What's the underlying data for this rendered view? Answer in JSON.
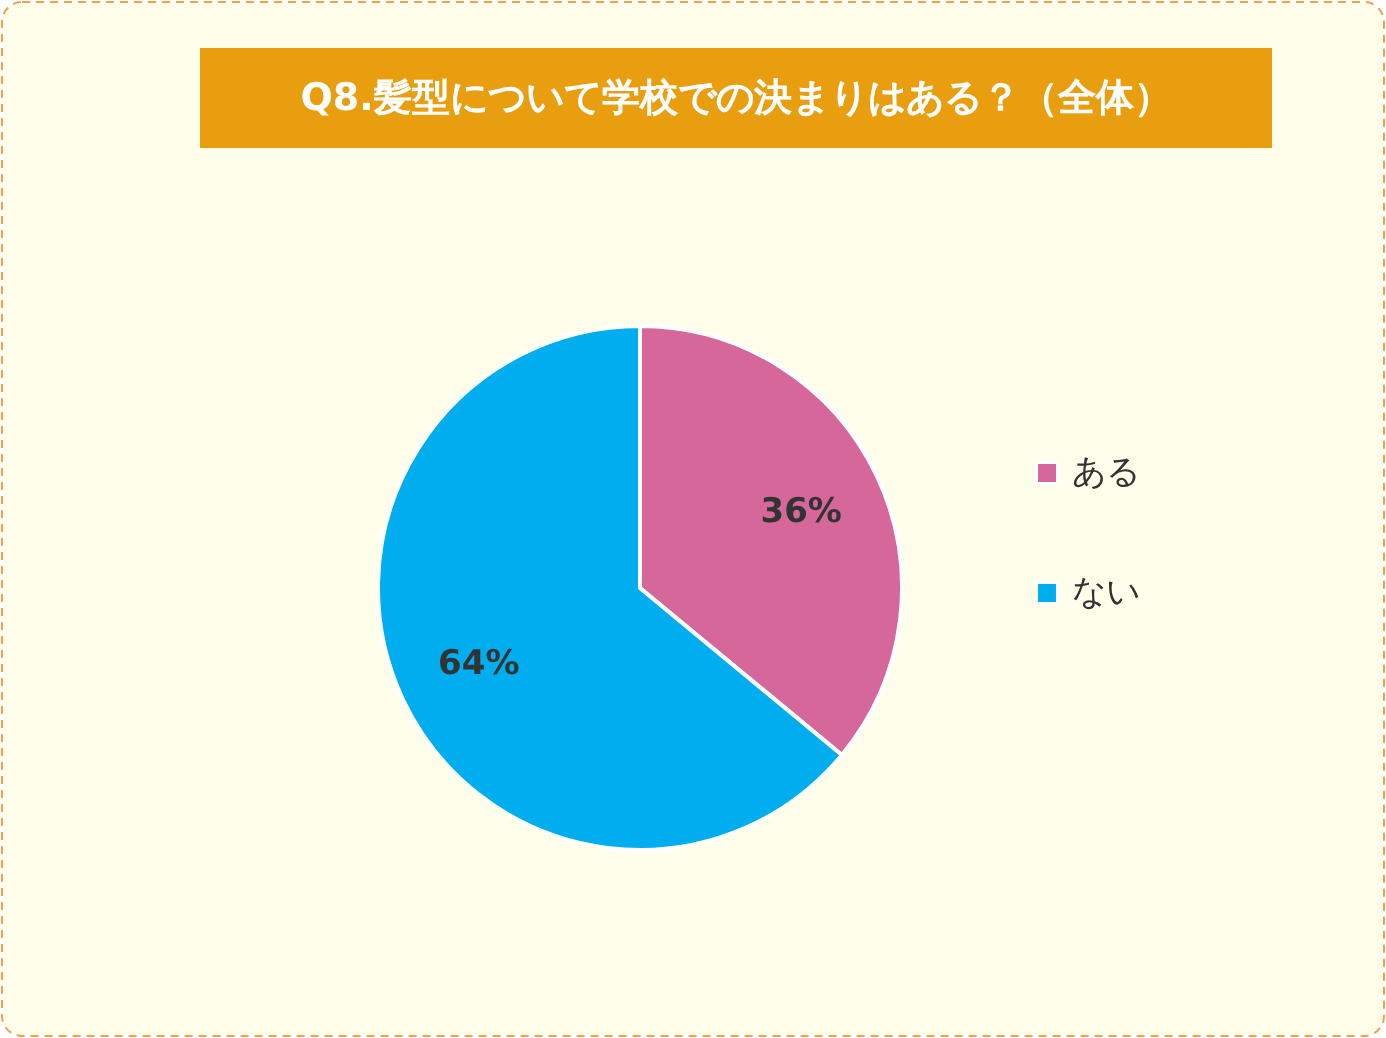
{
  "chart_data": {
    "type": "pie",
    "title": "Q8.髪型について学校での決まりはある？（全体）",
    "categories": [
      "ある",
      "ない"
    ],
    "values": [
      36,
      64
    ],
    "colors": [
      "#d6679a",
      "#00aeef"
    ],
    "value_labels": [
      "36%",
      "64%"
    ],
    "legend": "right"
  }
}
